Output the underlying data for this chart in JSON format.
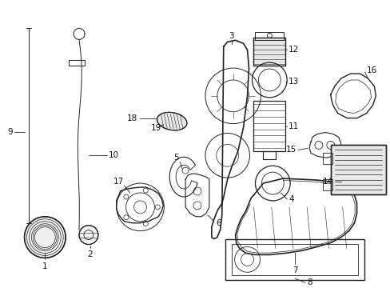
{
  "background_color": "#ffffff",
  "fig_width": 4.89,
  "fig_height": 3.6,
  "dpi": 100,
  "line_color": "#222222",
  "label_fontsize": 7.5,
  "label_color": "#111111"
}
